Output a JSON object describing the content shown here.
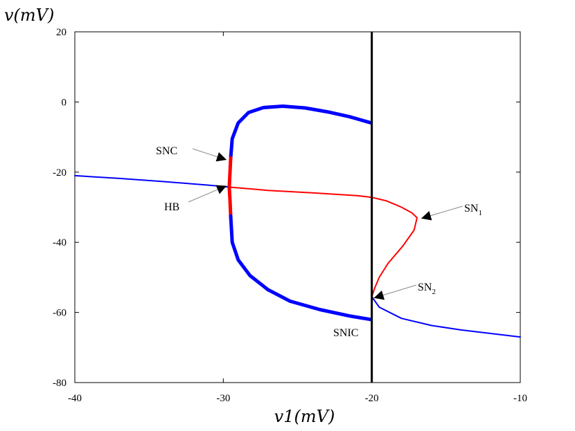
{
  "chart_data": {
    "type": "line",
    "xlabel": "v1(mV)",
    "ylabel": "v(mV)",
    "xlim": [
      -40,
      -10
    ],
    "ylim": [
      -80,
      20
    ],
    "xticks": [
      -40,
      -30,
      -20,
      -10
    ],
    "yticks": [
      20,
      0,
      -20,
      -40,
      -60,
      -80
    ],
    "grid": false,
    "legend": "none",
    "vertical_line": {
      "x": -20,
      "color": "#000000"
    },
    "series": [
      {
        "color": "#0000ff",
        "style": "thin",
        "points": [
          [
            -40,
            -21.0
          ],
          [
            -37,
            -21.8
          ],
          [
            -34,
            -22.7
          ],
          [
            -31,
            -23.7
          ],
          [
            -29.5,
            -24.3
          ]
        ]
      },
      {
        "color": "#ff0000",
        "style": "thin",
        "points": [
          [
            -29.5,
            -24.3
          ],
          [
            -27,
            -25.2
          ],
          [
            -24,
            -25.9
          ],
          [
            -21,
            -26.7
          ],
          [
            -20,
            -27.2
          ],
          [
            -19,
            -28.2
          ],
          [
            -18,
            -30.0
          ],
          [
            -17.3,
            -31.6
          ],
          [
            -16.95,
            -33.0
          ],
          [
            -17.15,
            -36.5
          ],
          [
            -17.9,
            -41.0
          ],
          [
            -18.9,
            -46.0
          ],
          [
            -19.5,
            -50.0
          ],
          [
            -19.8,
            -53.0
          ],
          [
            -20,
            -55.5
          ]
        ]
      },
      {
        "color": "#0000ff",
        "style": "thin",
        "points": [
          [
            -20,
            -55.5
          ],
          [
            -19.5,
            -58.5
          ],
          [
            -18,
            -61.7
          ],
          [
            -16,
            -63.7
          ],
          [
            -14,
            -65.0
          ],
          [
            -12,
            -66.0
          ],
          [
            -10,
            -67.0
          ]
        ]
      },
      {
        "color": "#0000ff",
        "style": "thick",
        "points": [
          [
            -29.5,
            -16.0
          ],
          [
            -29.4,
            -10.5
          ],
          [
            -29.0,
            -6.0
          ],
          [
            -28.3,
            -3.0
          ],
          [
            -27.3,
            -1.6
          ],
          [
            -26.0,
            -1.2
          ],
          [
            -24.5,
            -1.7
          ],
          [
            -23.0,
            -2.8
          ],
          [
            -21.5,
            -4.2
          ],
          [
            -20.1,
            -5.9
          ]
        ]
      },
      {
        "color": "#ff0000",
        "style": "thick",
        "points": [
          [
            -29.5,
            -16.0
          ],
          [
            -29.55,
            -20
          ],
          [
            -29.6,
            -24.3
          ],
          [
            -29.55,
            -28
          ],
          [
            -29.5,
            -32.5
          ]
        ]
      },
      {
        "color": "#0000ff",
        "style": "thick",
        "points": [
          [
            -29.5,
            -32.5
          ],
          [
            -29.4,
            -40.0
          ],
          [
            -29.0,
            -45.0
          ],
          [
            -28.2,
            -49.5
          ],
          [
            -27.0,
            -53.5
          ],
          [
            -25.5,
            -56.8
          ],
          [
            -23.5,
            -59.2
          ],
          [
            -21.5,
            -61.0
          ],
          [
            -20.1,
            -62.0
          ]
        ]
      }
    ],
    "annotations": [
      {
        "text": "SNC",
        "sub": "",
        "x": -29.5,
        "y": -16.5
      },
      {
        "text": "HB",
        "sub": "",
        "x": -29.5,
        "y": -24.3
      },
      {
        "text": "SN",
        "sub": "1",
        "x": -16.95,
        "y": -33.0
      },
      {
        "text": "SN",
        "sub": "2",
        "x": -20,
        "y": -55.5
      },
      {
        "text": "SNIC",
        "sub": "",
        "x": -20,
        "y": -62.0
      }
    ]
  }
}
